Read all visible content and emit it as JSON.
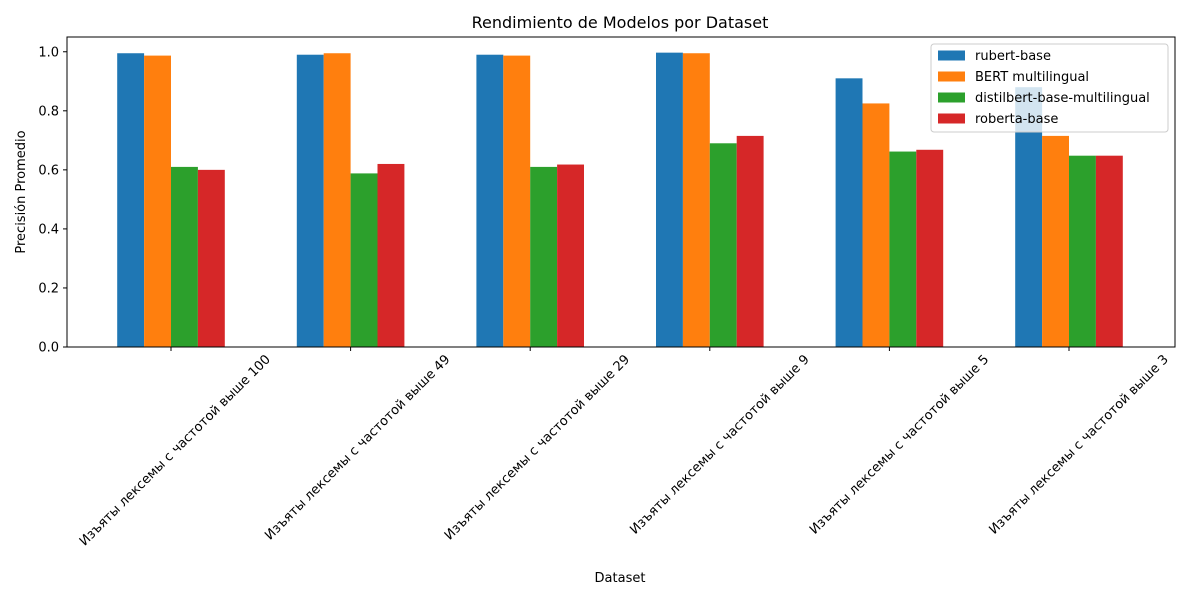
{
  "chart_data": {
    "type": "bar",
    "title": "Rendimiento de Modelos por Dataset",
    "xlabel": "Dataset",
    "ylabel": "Precisión Promedio",
    "ylim": [
      0,
      1.05
    ],
    "yticks": [
      "0.0",
      "0.2",
      "0.4",
      "0.6",
      "0.8",
      "1.0"
    ],
    "grid": false,
    "legend_position": "top-right",
    "categories": [
      "Изъяты лексемы с частотой выше 100",
      "Изъяты лексемы с частотой выше 49",
      "Изъяты лексемы с частотой выше 29",
      "Изъяты лексемы с частотой выше 9",
      "Изъяты лексемы с частотой выше 5",
      "Изъяты лексемы с частотой выше 3"
    ],
    "series": [
      {
        "name": "rubert-base",
        "color": "#1f77b4",
        "values": [
          0.995,
          0.99,
          0.99,
          0.997,
          0.91,
          0.88
        ]
      },
      {
        "name": "BERT multilingual",
        "color": "#ff7f0e",
        "values": [
          0.987,
          0.995,
          0.987,
          0.995,
          0.825,
          0.715
        ]
      },
      {
        "name": "distilbert-base-multilingual",
        "color": "#2ca02c",
        "values": [
          0.61,
          0.588,
          0.61,
          0.69,
          0.662,
          0.648
        ]
      },
      {
        "name": "roberta-base",
        "color": "#d62728",
        "values": [
          0.6,
          0.62,
          0.618,
          0.715,
          0.668,
          0.648
        ]
      }
    ]
  }
}
